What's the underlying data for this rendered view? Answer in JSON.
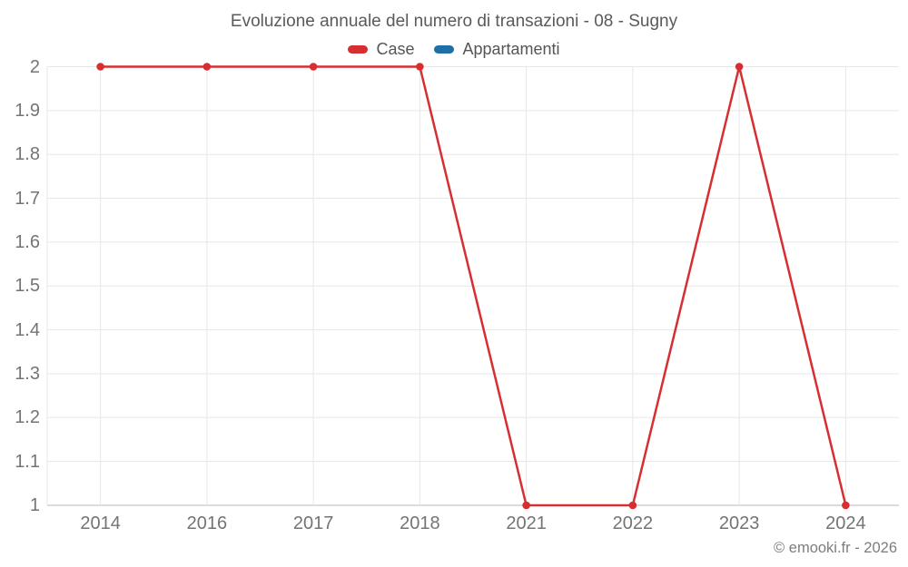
{
  "title": "Evoluzione annuale del numero di transazioni - 08 - Sugny",
  "legend": {
    "items": [
      {
        "label": "Case",
        "color": "#d62f32"
      },
      {
        "label": "Appartamenti",
        "color": "#1d6fa5"
      }
    ]
  },
  "copyright": "© emooki.fr - 2026",
  "colors": {
    "grid": "#e7e7e7",
    "axis_line": "#cfcfcf",
    "tick_label": "#747474",
    "title_text": "#5a5a5a",
    "case_red": "#d62f32",
    "appartamenti_blue": "#1d6fa5"
  },
  "chart_data": {
    "type": "line",
    "categories": [
      "2014",
      "2016",
      "2017",
      "2018",
      "2021",
      "2022",
      "2023",
      "2024"
    ],
    "series": [
      {
        "name": "Case",
        "color": "#d62f32",
        "values": [
          2,
          2,
          2,
          2,
          1,
          1,
          2,
          1
        ]
      },
      {
        "name": "Appartamenti",
        "color": "#1d6fa5",
        "values": []
      }
    ],
    "title": "Evoluzione annuale del numero di transazioni - 08 - Sugny",
    "xlabel": "",
    "ylabel": "",
    "ylim": [
      1,
      2
    ],
    "y_ticks": [
      "1",
      "1.1",
      "1.2",
      "1.3",
      "1.4",
      "1.5",
      "1.6",
      "1.7",
      "1.8",
      "1.9",
      "2"
    ],
    "grid": true,
    "legend_position": "top",
    "marker": "circle"
  }
}
